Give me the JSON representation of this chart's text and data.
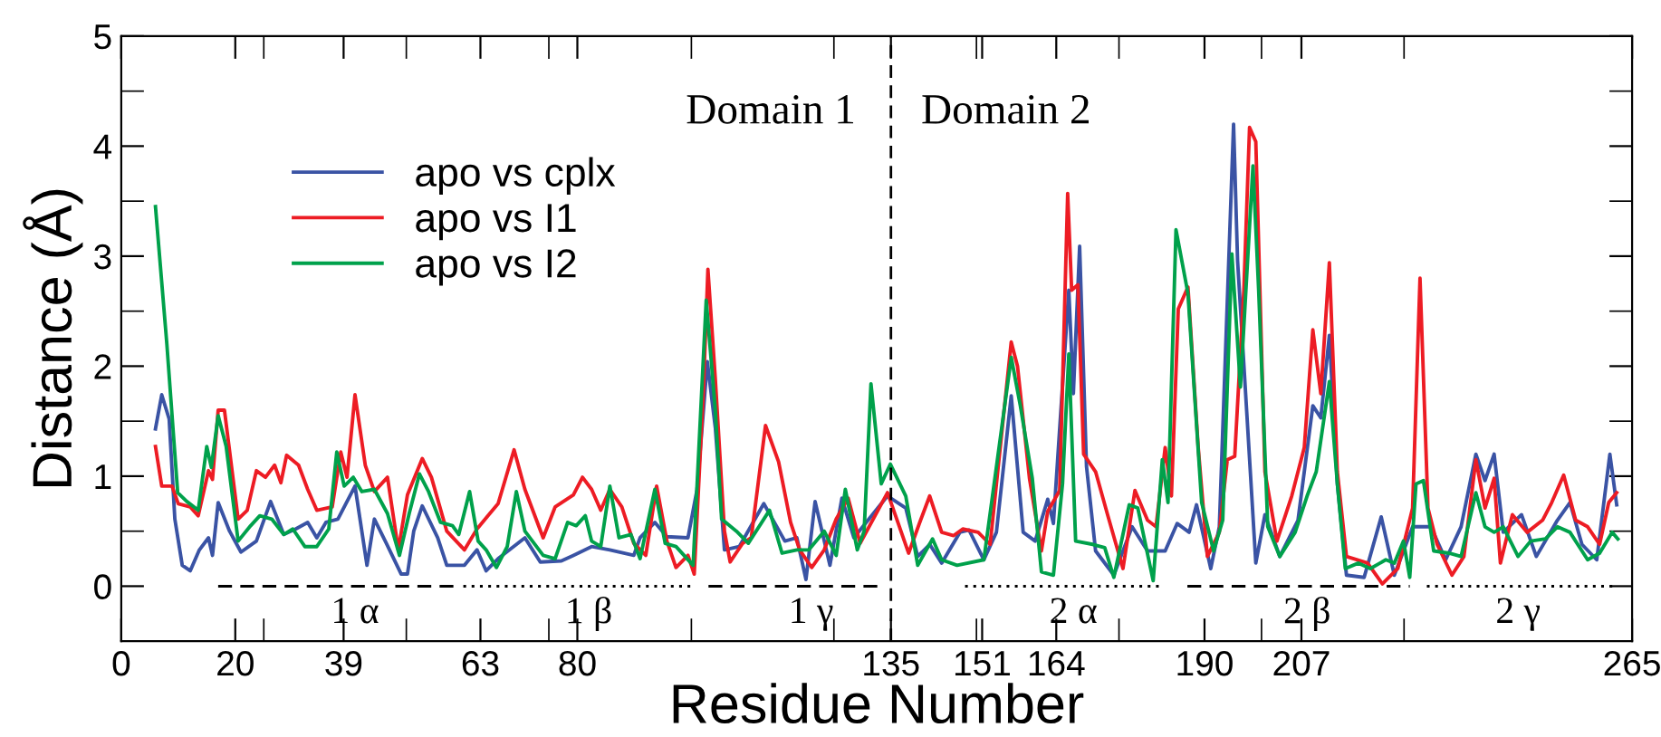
{
  "chart_data": {
    "type": "line",
    "xlabel": "Residue Number",
    "ylabel": "Distance (Å)",
    "xlim": [
      0,
      265
    ],
    "ylim": [
      -0.5,
      5
    ],
    "xticks": [
      0,
      20,
      {
        "value": 25,
        "label": null
      },
      39,
      {
        "value": 50,
        "label": null
      },
      63,
      {
        "value": 75,
        "label": null
      },
      80,
      {
        "value": 100,
        "label": null
      },
      {
        "value": 125,
        "label": null
      },
      135,
      {
        "value": 150,
        "label": null
      },
      151,
      164,
      {
        "value": 175,
        "label": null
      },
      190,
      {
        "value": 200,
        "label": null
      },
      207,
      {
        "value": 225,
        "label": null
      },
      265
    ],
    "yticks": [
      {
        "value": -0.5,
        "label": null
      },
      0,
      {
        "value": 0.5,
        "label": null
      },
      1,
      {
        "value": 1.5,
        "label": null
      },
      2,
      {
        "value": 2.5,
        "label": null
      },
      3,
      {
        "value": 3.5,
        "label": null
      },
      4,
      {
        "value": 4.5,
        "label": null
      },
      5
    ],
    "legend": "top left",
    "grid": false,
    "marker": "none",
    "line_style": "solid",
    "series": [
      {
        "name": "apo vs cplx",
        "color": "#3a53a4",
        "x": [
          6,
          7.1,
          8.4,
          9.4,
          10.7,
          12.1,
          13.7,
          15.3,
          16,
          17,
          19,
          21,
          23.7,
          26.2,
          28.5,
          30.6,
          32.7,
          34.3,
          35.9,
          38,
          41,
          43.1,
          44.4,
          46.5,
          49.1,
          50.2,
          51.3,
          52.8,
          55.5,
          57.1,
          60.2,
          62.4,
          64,
          66.1,
          70.8,
          73.5,
          77.2,
          79.3,
          82.5,
          85.7,
          89.9,
          91,
          93.6,
          95.7,
          99.4,
          101,
          102.8,
          104.2,
          105.8,
          108.4,
          112.7,
          116.4,
          118.5,
          120.1,
          121.7,
          124.3,
          126.4,
          128.5,
          134.4,
          137.6,
          139.7,
          141.8,
          143.9,
          147.1,
          148.7,
          151.3,
          153.5,
          156.1,
          158.2,
          160.3,
          162.5,
          163.5,
          166.2,
          167,
          168.1,
          169.3,
          170.9,
          174.1,
          177.3,
          180,
          183.1,
          185.2,
          187.3,
          188.6,
          191.1,
          192.6,
          195.1,
          195.8,
          197.4,
          199,
          200.6,
          203.2,
          206.4,
          209,
          210.4,
          211.9,
          213.3,
          214.9,
          218,
          221,
          223.3,
          226.5,
          229.7,
          232.3,
          235,
          237.6,
          239.2,
          240.8,
          242.4,
          245.6,
          248.2,
          251.9,
          254.1,
          256.2,
          258.8,
          261.1,
          262.3
        ],
        "values": [
          1.43,
          1.74,
          1.52,
          0.61,
          0.19,
          0.14,
          0.33,
          0.44,
          0.28,
          0.76,
          0.5,
          0.31,
          0.41,
          0.77,
          0.47,
          0.52,
          0.58,
          0.44,
          0.58,
          0.61,
          0.91,
          0.19,
          0.61,
          0.39,
          0.11,
          0.11,
          0.5,
          0.73,
          0.44,
          0.19,
          0.19,
          0.33,
          0.14,
          0.25,
          0.44,
          0.22,
          0.23,
          0.28,
          0.36,
          0.33,
          0.28,
          0.44,
          0.58,
          0.45,
          0.44,
          0.88,
          2.04,
          1.44,
          0.33,
          0.36,
          0.75,
          0.41,
          0.44,
          0.06,
          0.77,
          0.19,
          0.8,
          0.44,
          0.82,
          0.71,
          0.27,
          0.38,
          0.21,
          0.49,
          0.51,
          0.24,
          0.49,
          1.73,
          0.49,
          0.41,
          0.79,
          0.57,
          2.69,
          1.75,
          3.09,
          1.09,
          0.32,
          0.1,
          0.54,
          0.32,
          0.32,
          0.57,
          0.49,
          0.74,
          0.16,
          0.54,
          4.2,
          2.96,
          1.59,
          0.21,
          0.65,
          0.27,
          0.6,
          1.64,
          1.53,
          2.28,
          0.93,
          0.1,
          0.08,
          0.63,
          0.1,
          0.54,
          0.54,
          0.24,
          0.54,
          1.2,
          0.96,
          1.2,
          0.49,
          0.65,
          0.27,
          0.6,
          0.76,
          0.38,
          0.24,
          1.2,
          0.74
        ]
      },
      {
        "name": "apo vs I1",
        "color": "#ed1c24",
        "x": [
          6,
          7.1,
          8.9,
          10,
          12.1,
          13.5,
          15.3,
          16,
          17,
          18.1,
          20.5,
          22.1,
          23.7,
          25.3,
          26.9,
          28,
          29,
          31.1,
          32.7,
          34.3,
          37,
          38.5,
          39.6,
          41,
          42.8,
          44.4,
          46.7,
          48.6,
          50.2,
          52.8,
          54.4,
          57.1,
          60.2,
          62.4,
          64.3,
          66.1,
          68.9,
          70.8,
          74,
          76.1,
          79.3,
          80.9,
          82.5,
          84.1,
          85.7,
          87.8,
          89.9,
          92,
          93.9,
          95.7,
          97.3,
          99.4,
          100.5,
          102.1,
          102.9,
          104.2,
          105.8,
          106.8,
          109,
          110.5,
          113,
          115.3,
          117.4,
          119,
          121.1,
          123.3,
          125.4,
          127.5,
          129.6,
          134.4,
          138.1,
          140.2,
          141.8,
          143.9,
          146,
          147.6,
          150.3,
          152.4,
          156.1,
          157.2,
          159.3,
          161.4,
          162.5,
          164.6,
          166,
          166.7,
          167.8,
          168.8,
          170.9,
          173,
          175.7,
          177.8,
          180,
          181.5,
          183.1,
          184.2,
          185.4,
          187.1,
          188.9,
          190.5,
          192.6,
          194,
          195.3,
          196.9,
          197.9,
          199,
          200.6,
          202.7,
          205.3,
          207.5,
          209,
          210.4,
          211.9,
          213.3,
          214.9,
          218.6,
          221.2,
          223.9,
          226.5,
          227.8,
          229.2,
          230.8,
          233.4,
          235.5,
          237.6,
          239.2,
          240.8,
          241.9,
          244,
          246.6,
          249.3,
          250.9,
          253,
          255.1,
          257.2,
          259.3,
          260.9,
          262.3
        ],
        "values": [
          1.27,
          0.91,
          0.91,
          0.75,
          0.72,
          0.64,
          1.05,
          0.97,
          1.6,
          1.6,
          0.61,
          0.69,
          1.05,
          0.99,
          1.1,
          0.94,
          1.19,
          1.1,
          0.88,
          0.69,
          0.72,
          1.22,
          0.99,
          1.74,
          1.1,
          0.86,
          0.99,
          0.33,
          0.83,
          1.16,
          0.99,
          0.5,
          0.33,
          0.52,
          0.64,
          0.75,
          1.24,
          0.88,
          0.44,
          0.72,
          0.83,
          0.99,
          0.88,
          0.69,
          0.88,
          0.72,
          0.39,
          0.28,
          0.91,
          0.41,
          0.17,
          0.28,
          0.11,
          1.77,
          2.88,
          1.88,
          0.5,
          0.22,
          0.39,
          0.44,
          1.46,
          1.13,
          0.58,
          0.33,
          0.17,
          0.33,
          0.61,
          0.8,
          0.39,
          0.85,
          0.3,
          0.6,
          0.82,
          0.49,
          0.46,
          0.52,
          0.49,
          0.38,
          2.22,
          2,
          0.98,
          0.32,
          0.68,
          0.87,
          3.57,
          2.69,
          2.74,
          1.2,
          1.04,
          0.65,
          0.16,
          0.87,
          0.6,
          0.54,
          1.26,
          0.82,
          2.52,
          2.72,
          1.26,
          0.27,
          0.49,
          1.15,
          1.18,
          2.69,
          4.17,
          4.04,
          1.04,
          0.41,
          0.82,
          1.26,
          2.33,
          1.75,
          2.94,
          1.04,
          0.27,
          0.21,
          0.02,
          0.16,
          0.71,
          2.8,
          0.71,
          0.38,
          0.1,
          0.27,
          1.15,
          0.71,
          0.98,
          0.21,
          0.65,
          0.49,
          0.6,
          0.76,
          1.01,
          0.6,
          0.54,
          0.38,
          0.76,
          0.85
        ]
      },
      {
        "name": "apo vs I2",
        "color": "#00a14b",
        "x": [
          6,
          8,
          9.9,
          11.5,
          13.5,
          15,
          15.8,
          17,
          18.4,
          20.5,
          22.7,
          24.3,
          26.4,
          28.5,
          30.1,
          32.2,
          34.3,
          36.4,
          37.8,
          39.1,
          40.7,
          42.2,
          44.4,
          46.7,
          48.8,
          50.5,
          52.3,
          53.9,
          56,
          58.1,
          59.2,
          61.1,
          62.6,
          64,
          65.8,
          67.7,
          69.3,
          70.8,
          74,
          76.1,
          78.3,
          79.8,
          81.4,
          82.5,
          84.1,
          85.7,
          87.3,
          89.4,
          91,
          93.6,
          95.4,
          97.3,
          100.3,
          102.6,
          104.2,
          105.3,
          107.9,
          110,
          113.7,
          115.9,
          118.5,
          120.6,
          123.3,
          125.4,
          127,
          129.1,
          130.3,
          131.5,
          133.3,
          134.9,
          137.6,
          139.7,
          142.3,
          143.9,
          146.6,
          151.3,
          156.1,
          157.7,
          159.8,
          161.4,
          163.5,
          165.1,
          166.2,
          167.4,
          170.4,
          172.5,
          174.1,
          176.8,
          178.3,
          181,
          182.6,
          183.6,
          185,
          187.1,
          189.5,
          191.6,
          193.2,
          194.8,
          196.3,
          198.5,
          199.5,
          201.1,
          203.2,
          205.9,
          208,
          209.6,
          211.9,
          213.3,
          214.7,
          217,
          219.1,
          221.8,
          223.3,
          224.9,
          226,
          227.1,
          228.4,
          230.2,
          232.9,
          235,
          237.6,
          239.2,
          240.8,
          242.4,
          245,
          247.2,
          249.8,
          251.9,
          254.1,
          257.2,
          259.3,
          261.5,
          262.5
        ],
        "values": [
          3.45,
          2.2,
          0.85,
          0.77,
          0.69,
          1.27,
          1.08,
          1.55,
          1.27,
          0.41,
          0.55,
          0.64,
          0.61,
          0.47,
          0.52,
          0.36,
          0.36,
          0.52,
          1.22,
          0.91,
          0.99,
          0.86,
          0.88,
          0.66,
          0.28,
          0.66,
          1.02,
          0.86,
          0.58,
          0.55,
          0.47,
          0.86,
          0.41,
          0.33,
          0.17,
          0.36,
          0.86,
          0.5,
          0.28,
          0.25,
          0.58,
          0.55,
          0.64,
          0.41,
          0.36,
          0.91,
          0.44,
          0.47,
          0.25,
          0.88,
          0.39,
          0.36,
          0.19,
          2.6,
          1.6,
          0.61,
          0.5,
          0.39,
          0.69,
          0.3,
          0.33,
          0.33,
          0.5,
          0.28,
          0.88,
          0.33,
          0.5,
          1.84,
          0.93,
          1.11,
          0.82,
          0.19,
          0.43,
          0.24,
          0.19,
          0.24,
          2.08,
          1.64,
          0.98,
          0.13,
          0.1,
          0.93,
          2.11,
          0.41,
          0.38,
          0.35,
          0.08,
          0.74,
          0.71,
          0.05,
          1.15,
          0.76,
          3.24,
          2.66,
          0.76,
          0.32,
          0.6,
          3.02,
          1.81,
          3.82,
          2.69,
          0.54,
          0.27,
          0.49,
          0.82,
          1.04,
          1.86,
          0.93,
          0.16,
          0.21,
          0.16,
          0.24,
          0.21,
          0.41,
          0.08,
          0.93,
          0.96,
          0.32,
          0.3,
          0.27,
          0.85,
          0.54,
          0.49,
          0.54,
          0.27,
          0.41,
          0.43,
          0.54,
          0.49,
          0.24,
          0.3,
          0.49,
          0.43
        ]
      },
      {
        "color": "#000000",
        "line_style": "dashed",
        "x": [
          17,
          59
        ],
        "values": [
          0,
          0
        ]
      },
      {
        "color": "#000000",
        "line_style": "dotted",
        "x": [
          60,
          100
        ],
        "values": [
          0,
          0
        ]
      },
      {
        "color": "#000000",
        "line_style": "dashed",
        "x": [
          103,
          134
        ],
        "values": [
          0,
          0
        ]
      },
      {
        "color": "#000000",
        "line_style": "dotted",
        "x": [
          148,
          182
        ],
        "values": [
          0,
          0
        ]
      },
      {
        "color": "#000000",
        "line_style": "dashed",
        "x": [
          187,
          226
        ],
        "values": [
          0,
          0
        ]
      },
      {
        "color": "#000000",
        "line_style": "dotted",
        "x": [
          229,
          262
        ],
        "values": [
          0,
          0
        ]
      }
    ],
    "ref_lines": [
      {
        "axis": "x",
        "value": 135,
        "color": "#000000",
        "line_style": "dashed"
      }
    ],
    "annotations": [
      "Domain 1",
      "Domain 2",
      {
        "text": "1 α",
        "x": 41,
        "y": 0
      },
      {
        "text": "1 β",
        "x": 82,
        "y": 0
      },
      {
        "text": "1 γ",
        "x": 121,
        "y": 0
      },
      {
        "text": "2 α",
        "x": 167,
        "y": 0
      },
      {
        "text": "2 β",
        "x": 208,
        "y": 0
      },
      {
        "text": "2 γ",
        "x": 245,
        "y": 0
      }
    ]
  }
}
